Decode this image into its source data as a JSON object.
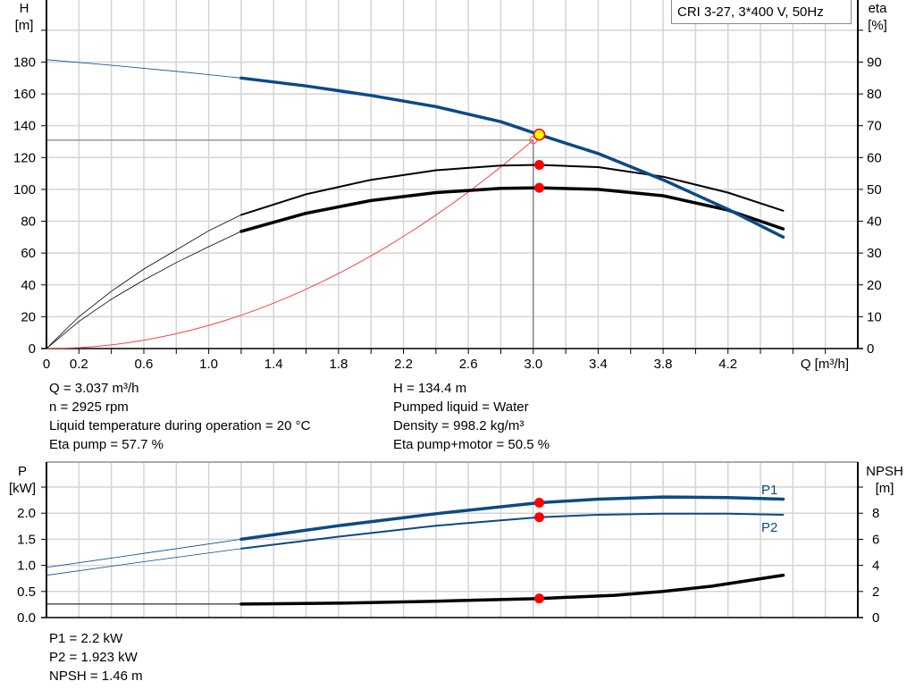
{
  "colors": {
    "head": "#0b4a86",
    "eta": "#000000",
    "system": "#ff4040",
    "point": "#ff0000",
    "duty": "#ffff00",
    "grid": "#d4d4d4",
    "power": "#0b4a86",
    "npsh": "#000000"
  },
  "legend": "CRI 3-27, 3*400 V, 50Hz",
  "info_top": {
    "left": [
      "Q = 3.037 m³/h",
      "n = 2925 rpm",
      "Liquid temperature during operation = 20 °C",
      "Eta pump = 57.7 %"
    ],
    "right": [
      "H = 134.4 m",
      "Pumped liquid = Water",
      "Density = 998.2 kg/m³",
      "Eta pump+motor = 50.5 %"
    ]
  },
  "info_bottom": [
    "P1 = 2.2 kW",
    "P2 = 1.923 kW",
    "NPSH = 1.46 m"
  ],
  "chart_data": [
    {
      "type": "line",
      "xlabel": "Q [m³/h]",
      "ylabel": "H\n[m]",
      "y2label": "eta\n[%]",
      "xlim": [
        0,
        5.0
      ],
      "ylim": [
        0,
        219
      ],
      "y2lim": [
        0,
        109.5
      ],
      "xticks": [
        "0",
        "0.2",
        "0.6",
        "1.0",
        "1.4",
        "1.8",
        "2.2",
        "2.6",
        "3.0",
        "3.4",
        "3.8",
        "4.2"
      ],
      "yticks": [
        "0",
        "20",
        "40",
        "60",
        "80",
        "100",
        "120",
        "140",
        "160",
        "180"
      ],
      "y2ticks": [
        "0",
        "10",
        "20",
        "30",
        "40",
        "50",
        "60",
        "70",
        "80",
        "90"
      ],
      "grid": true,
      "operating_range_start_q": 1.2,
      "series": [
        {
          "axis": "H",
          "x": [
            0,
            0.4,
            0.8,
            1.2,
            1.6,
            2.0,
            2.4,
            2.8,
            3.037,
            3.4,
            3.8,
            4.2,
            4.54
          ],
          "y": [
            181.5,
            178,
            174.2,
            170,
            165,
            159,
            152,
            142.5,
            134.4,
            122.5,
            106,
            87.5,
            70
          ]
        },
        {
          "axis": "eta",
          "x": [
            0,
            0.2,
            0.4,
            0.6,
            0.8,
            1.0,
            1.2,
            1.6,
            2.0,
            2.4,
            2.8,
            3.037,
            3.4,
            3.8,
            4.2,
            4.54
          ],
          "y": [
            0,
            10,
            18,
            25,
            31,
            37,
            42,
            48.5,
            53,
            56,
            57.5,
            57.7,
            57,
            54,
            49,
            43.3
          ]
        },
        {
          "axis": "eta",
          "x": [
            0,
            0.2,
            0.4,
            0.6,
            0.8,
            1.0,
            1.2,
            1.6,
            2.0,
            2.4,
            2.8,
            3.037,
            3.4,
            3.8,
            4.2,
            4.54
          ],
          "y": [
            0,
            8.5,
            15.5,
            21.5,
            27,
            32,
            36.8,
            42.5,
            46.5,
            49,
            50.3,
            50.5,
            50,
            48,
            43.5,
            37.6
          ]
        }
      ],
      "system_curve": {
        "x_end": 3.0,
        "h_end": 131
      },
      "reference_point": {
        "q": 3.0,
        "h": 131
      },
      "duty_point": {
        "q": 3.037,
        "h": 134.4,
        "eta_pump": 57.7,
        "eta_pump_motor": 50.5
      }
    },
    {
      "type": "line",
      "ylabel": "P\n[kW]",
      "y2label": "NPSH\n[m]",
      "xlim": [
        0,
        5.0
      ],
      "ylim": [
        0,
        2.98
      ],
      "y2lim": [
        0,
        11.9
      ],
      "yticks": [
        "0.0",
        "0.5",
        "1.0",
        "1.5",
        "2.0"
      ],
      "y2ticks": [
        "0",
        "2",
        "4",
        "6",
        "8"
      ],
      "grid": true,
      "series": [
        {
          "name": "P1",
          "axis": "P",
          "x": [
            0,
            0.6,
            1.2,
            1.8,
            2.4,
            3.037,
            3.4,
            3.8,
            4.2,
            4.54
          ],
          "y": [
            0.96,
            1.23,
            1.5,
            1.76,
            1.99,
            2.2,
            2.27,
            2.31,
            2.3,
            2.27
          ]
        },
        {
          "name": "P2",
          "axis": "P",
          "x": [
            0,
            0.6,
            1.2,
            1.8,
            2.4,
            3.037,
            3.4,
            3.8,
            4.2,
            4.54
          ],
          "y": [
            0.81,
            1.07,
            1.32,
            1.55,
            1.76,
            1.923,
            1.97,
            1.99,
            1.99,
            1.97
          ]
        },
        {
          "axis": "NPSH",
          "x": [
            0,
            0.6,
            1.2,
            1.8,
            2.4,
            3.037,
            3.5,
            3.8,
            4.1,
            4.54
          ],
          "y": [
            1.03,
            1.03,
            1.03,
            1.1,
            1.25,
            1.46,
            1.7,
            2.0,
            2.4,
            3.24
          ]
        }
      ],
      "duty_point": {
        "q": 3.037,
        "p1": 2.2,
        "p2": 1.923,
        "npsh": 1.46
      }
    }
  ]
}
